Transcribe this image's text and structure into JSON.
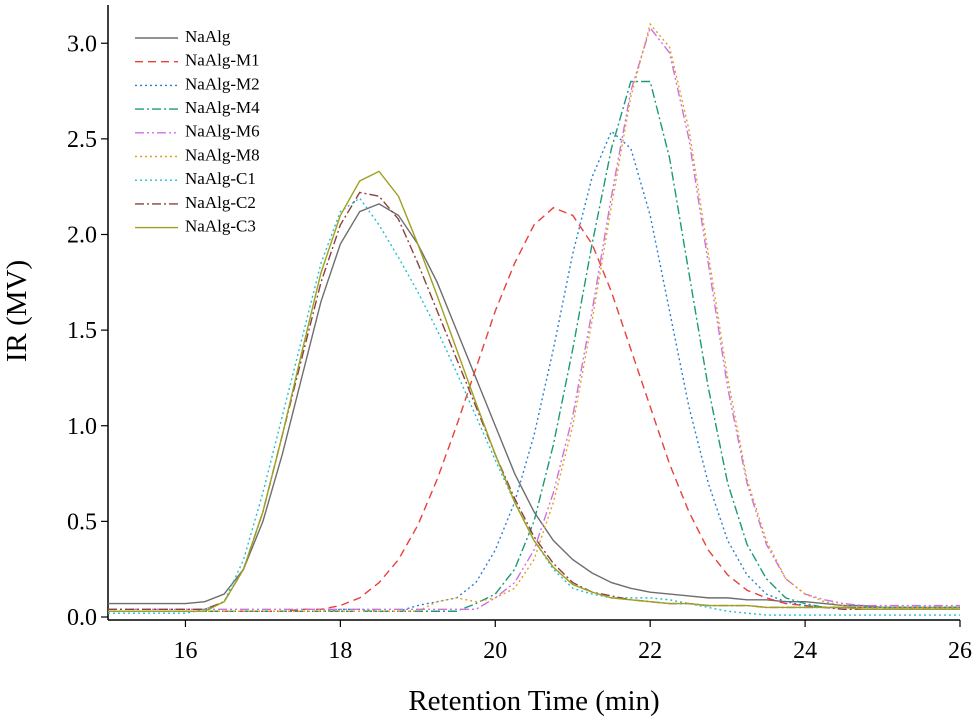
{
  "chart_data": {
    "type": "line",
    "x_label": "Retention Time (min)",
    "y_label": "IR (MV)",
    "x": [
      15,
      15.25,
      15.5,
      15.75,
      16,
      16.25,
      16.5,
      16.75,
      17,
      17.25,
      17.5,
      17.75,
      18,
      18.25,
      18.5,
      18.75,
      19,
      19.25,
      19.5,
      19.75,
      20,
      20.25,
      20.5,
      20.75,
      21,
      21.25,
      21.5,
      21.75,
      22,
      22.25,
      22.5,
      22.75,
      23,
      23.25,
      23.5,
      23.75,
      24,
      24.25,
      24.5,
      24.75,
      25,
      25.25,
      25.5,
      25.75,
      26
    ],
    "xlim": [
      15,
      26
    ],
    "ylim": [
      0,
      3.2
    ],
    "xticks": [
      16,
      18,
      20,
      22,
      24,
      26
    ],
    "yticks": [
      {
        "value": 0,
        "label": "0.0"
      },
      0.5,
      {
        "value": 1,
        "label": "1.0"
      },
      1.5,
      {
        "value": 2,
        "label": "2.0"
      },
      2.5,
      {
        "value": 3,
        "label": "3.0"
      }
    ],
    "legend": "upper left",
    "series": [
      {
        "name": "NaAlg",
        "color": "#6e6e6e",
        "style": "solid",
        "values": [
          0.07,
          0.07,
          0.07,
          0.07,
          0.07,
          0.08,
          0.12,
          0.25,
          0.5,
          0.85,
          1.25,
          1.65,
          1.95,
          2.12,
          2.16,
          2.1,
          1.95,
          1.75,
          1.5,
          1.25,
          1.0,
          0.75,
          0.55,
          0.4,
          0.3,
          0.23,
          0.18,
          0.15,
          0.13,
          0.12,
          0.11,
          0.1,
          0.1,
          0.09,
          0.09,
          0.08,
          0.08,
          0.07,
          0.06,
          0.06,
          0.05,
          0.05,
          0.05,
          0.05,
          0.05
        ]
      },
      {
        "name": "NaAlg-M1",
        "color": "#e8403a",
        "style": "dashed",
        "values": [
          0.03,
          0.03,
          0.03,
          0.03,
          0.03,
          0.03,
          0.03,
          0.03,
          0.03,
          0.03,
          0.04,
          0.04,
          0.06,
          0.1,
          0.18,
          0.3,
          0.48,
          0.72,
          1.0,
          1.3,
          1.6,
          1.85,
          2.05,
          2.14,
          2.1,
          1.95,
          1.7,
          1.4,
          1.1,
          0.8,
          0.55,
          0.35,
          0.22,
          0.14,
          0.1,
          0.07,
          0.06,
          0.05,
          0.05,
          0.05,
          0.05,
          0.05,
          0.05,
          0.05,
          0.05
        ]
      },
      {
        "name": "NaAlg-M2",
        "color": "#2a7fd4",
        "style": "dotted",
        "values": [
          0.03,
          0.03,
          0.03,
          0.03,
          0.03,
          0.03,
          0.03,
          0.03,
          0.03,
          0.03,
          0.03,
          0.03,
          0.04,
          0.04,
          0.03,
          0.03,
          0.06,
          0.08,
          0.1,
          0.18,
          0.35,
          0.6,
          0.95,
          1.4,
          1.9,
          2.3,
          2.54,
          2.45,
          2.1,
          1.6,
          1.1,
          0.7,
          0.4,
          0.22,
          0.12,
          0.08,
          0.06,
          0.05,
          0.05,
          0.05,
          0.05,
          0.05,
          0.05,
          0.05,
          0.05
        ]
      },
      {
        "name": "NaAlg-M4",
        "color": "#1a9a7a",
        "style": "dashdot",
        "values": [
          0.03,
          0.03,
          0.03,
          0.03,
          0.03,
          0.03,
          0.03,
          0.03,
          0.03,
          0.03,
          0.03,
          0.03,
          0.03,
          0.03,
          0.03,
          0.03,
          0.03,
          0.03,
          0.03,
          0.07,
          0.12,
          0.25,
          0.5,
          0.9,
          1.4,
          1.95,
          2.45,
          2.8,
          2.8,
          2.4,
          1.8,
          1.2,
          0.7,
          0.38,
          0.2,
          0.1,
          0.07,
          0.05,
          0.05,
          0.05,
          0.05,
          0.05,
          0.05,
          0.05,
          0.05
        ]
      },
      {
        "name": "NaAlg-M6",
        "color": "#d070e0",
        "style": "dashdotdot",
        "values": [
          0.04,
          0.04,
          0.04,
          0.04,
          0.04,
          0.04,
          0.04,
          0.04,
          0.04,
          0.04,
          0.04,
          0.04,
          0.04,
          0.04,
          0.04,
          0.04,
          0.04,
          0.04,
          0.04,
          0.04,
          0.1,
          0.18,
          0.35,
          0.65,
          1.05,
          1.6,
          2.2,
          2.75,
          3.08,
          2.95,
          2.5,
          1.85,
          1.2,
          0.7,
          0.38,
          0.2,
          0.12,
          0.09,
          0.07,
          0.06,
          0.06,
          0.06,
          0.06,
          0.06,
          0.06
        ]
      },
      {
        "name": "NaAlg-M8",
        "color": "#e0a020",
        "style": "dotted",
        "values": [
          0.03,
          0.03,
          0.03,
          0.03,
          0.03,
          0.03,
          0.03,
          0.03,
          0.03,
          0.03,
          0.03,
          0.03,
          0.03,
          0.03,
          0.03,
          0.03,
          0.03,
          0.08,
          0.1,
          0.08,
          0.1,
          0.15,
          0.3,
          0.6,
          1.0,
          1.55,
          2.15,
          2.72,
          3.1,
          2.98,
          2.55,
          1.9,
          1.25,
          0.72,
          0.4,
          0.2,
          0.12,
          0.08,
          0.06,
          0.05,
          0.05,
          0.05,
          0.05,
          0.05,
          0.05
        ]
      },
      {
        "name": "NaAlg-C1",
        "color": "#20c0d0",
        "style": "dotted",
        "values": [
          0.02,
          0.02,
          0.02,
          0.02,
          0.02,
          0.04,
          0.08,
          0.3,
          0.65,
          1.05,
          1.45,
          1.85,
          2.12,
          2.19,
          2.05,
          1.88,
          1.7,
          1.5,
          1.28,
          1.05,
          0.82,
          0.6,
          0.4,
          0.25,
          0.15,
          0.12,
          0.1,
          0.1,
          0.1,
          0.09,
          0.07,
          0.05,
          0.03,
          0.02,
          0.01,
          0.01,
          0.01,
          0.01,
          0.01,
          0.01,
          0.01,
          0.01,
          0.01,
          0.01,
          0.01
        ]
      },
      {
        "name": "NaAlg-C2",
        "color": "#8a4040",
        "style": "dashdot",
        "values": [
          0.04,
          0.04,
          0.04,
          0.04,
          0.04,
          0.04,
          0.08,
          0.25,
          0.55,
          0.95,
          1.35,
          1.75,
          2.05,
          2.22,
          2.2,
          2.08,
          1.85,
          1.6,
          1.35,
          1.1,
          0.85,
          0.62,
          0.42,
          0.28,
          0.18,
          0.13,
          0.11,
          0.09,
          0.08,
          0.07,
          0.07,
          0.06,
          0.06,
          0.06,
          0.05,
          0.05,
          0.05,
          0.05,
          0.04,
          0.04,
          0.04,
          0.04,
          0.04,
          0.04,
          0.04
        ]
      },
      {
        "name": "NaAlg-C3",
        "color": "#a0a020",
        "style": "solid",
        "values": [
          0.03,
          0.03,
          0.03,
          0.03,
          0.03,
          0.03,
          0.08,
          0.25,
          0.55,
          0.95,
          1.38,
          1.8,
          2.1,
          2.28,
          2.33,
          2.2,
          1.95,
          1.68,
          1.4,
          1.12,
          0.85,
          0.6,
          0.4,
          0.26,
          0.17,
          0.13,
          0.1,
          0.09,
          0.08,
          0.07,
          0.07,
          0.06,
          0.06,
          0.06,
          0.05,
          0.05,
          0.05,
          0.05,
          0.05,
          0.04,
          0.04,
          0.04,
          0.04,
          0.04,
          0.04
        ]
      }
    ]
  }
}
